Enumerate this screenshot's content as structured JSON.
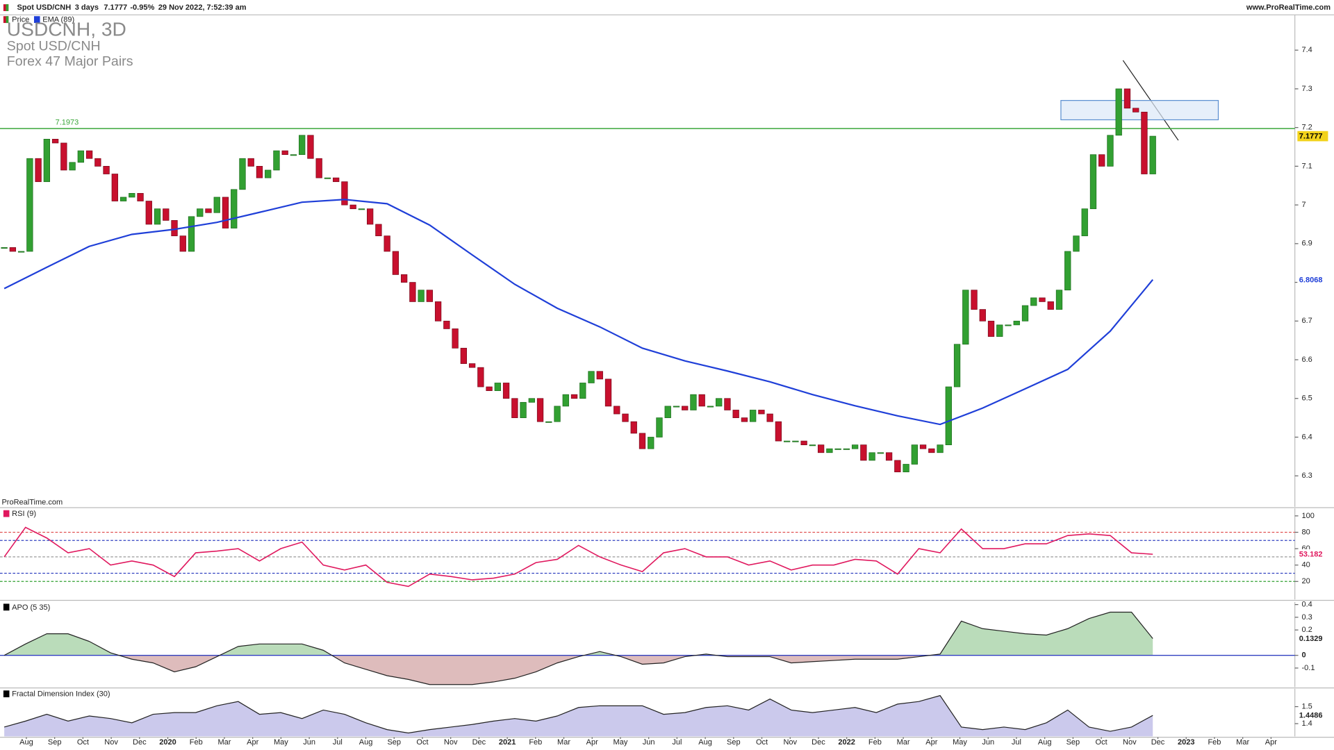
{
  "header": {
    "instrument": "Spot USD/CNH",
    "timeframe": "3 days",
    "last": "7.1777",
    "change": "-0.95%",
    "datetime": "29 Nov 2022, 7:52:39 am",
    "site": "www.ProRealTime.com",
    "watermark": "ProRealTime.com"
  },
  "chart_data": [
    {
      "type": "candlestick",
      "title": "USDCNH, 3D",
      "subtitle": "Spot USD/CNH",
      "market": "Forex 47 Major Pairs",
      "xtick_labels": [
        "Aug",
        "Sep",
        "Oct",
        "Nov",
        "Dec",
        "2020",
        "Feb",
        "Mar",
        "Apr",
        "May",
        "Jun",
        "Jul",
        "Aug",
        "Sep",
        "Oct",
        "Nov",
        "Dec",
        "2021",
        "Feb",
        "Mar",
        "Apr",
        "May",
        "Jun",
        "Jul",
        "Aug",
        "Sep",
        "Oct",
        "Nov",
        "Dec",
        "2022",
        "Feb",
        "Mar",
        "Apr",
        "May",
        "Jun",
        "Jul",
        "Aug",
        "Sep",
        "Oct",
        "Nov",
        "Dec",
        "2023",
        "Feb",
        "Mar",
        "Apr"
      ],
      "series": [
        {
          "name": "Price",
          "up_color": "#32a032",
          "down_color": "#c8102e",
          "values": [
            6.89,
            6.88,
            6.88,
            7.12,
            7.06,
            7.17,
            7.16,
            7.09,
            7.11,
            7.14,
            7.12,
            7.1,
            7.08,
            7.01,
            7.02,
            7.03,
            7.01,
            6.95,
            6.99,
            6.96,
            6.92,
            6.88,
            6.97,
            6.99,
            6.98,
            7.02,
            6.94,
            7.04,
            7.12,
            7.1,
            7.07,
            7.09,
            7.14,
            7.13,
            7.13,
            7.18,
            7.12,
            7.07,
            7.07,
            7.06,
            7.0,
            6.99,
            6.99,
            6.95,
            6.92,
            6.88,
            6.82,
            6.8,
            6.75,
            6.78,
            6.75,
            6.7,
            6.68,
            6.63,
            6.59,
            6.58,
            6.53,
            6.52,
            6.54,
            6.5,
            6.45,
            6.49,
            6.5,
            6.44,
            6.44,
            6.48,
            6.51,
            6.5,
            6.54,
            6.57,
            6.55,
            6.48,
            6.46,
            6.44,
            6.41,
            6.37,
            6.4,
            6.45,
            6.48,
            6.48,
            6.47,
            6.51,
            6.48,
            6.48,
            6.5,
            6.47,
            6.45,
            6.44,
            6.47,
            6.46,
            6.44,
            6.39,
            6.39,
            6.39,
            6.38,
            6.38,
            6.36,
            6.37,
            6.37,
            6.37,
            6.38,
            6.34,
            6.36,
            6.36,
            6.34,
            6.31,
            6.33,
            6.38,
            6.37,
            6.36,
            6.38,
            6.53,
            6.64,
            6.78,
            6.73,
            6.7,
            6.66,
            6.69,
            6.69,
            6.7,
            6.74,
            6.76,
            6.75,
            6.73,
            6.78,
            6.88,
            6.92,
            6.99,
            7.13,
            7.1,
            7.18,
            7.3,
            7.25,
            7.24,
            7.08,
            7.1777
          ]
        },
        {
          "name": "EMA (89)",
          "color": "#1f3fd8",
          "values": [
            6.784,
            6.839,
            6.893,
            6.924,
            6.937,
            6.955,
            6.981,
            7.007,
            7.014,
            7.003,
            6.948,
            6.871,
            6.795,
            6.733,
            6.685,
            6.63,
            6.597,
            6.571,
            6.543,
            6.51,
            6.481,
            6.455,
            6.433,
            6.475,
            6.525,
            6.575,
            6.674,
            6.8068
          ]
        }
      ],
      "ylim": [
        6.22,
        7.49
      ],
      "yticks": [
        6.3,
        6.4,
        6.5,
        6.6,
        6.7,
        6.8,
        6.9,
        7,
        7.1,
        7.2,
        7.3,
        7.4
      ],
      "resistance": {
        "value": 7.1973,
        "label": "7.1973",
        "color": "#3aa63a"
      },
      "zone": [
        7.22,
        7.27
      ]
    },
    {
      "type": "line",
      "title": "RSI (9)",
      "color": "#e0185e",
      "values": [
        50,
        86,
        73,
        55,
        60,
        40,
        45,
        40,
        26,
        55,
        57,
        60,
        45,
        60,
        68,
        40,
        34,
        40,
        19,
        14,
        29,
        26,
        22,
        24,
        29,
        43,
        47,
        64,
        50,
        40,
        32,
        55,
        60,
        50,
        50,
        40,
        45,
        34,
        40,
        40,
        47,
        45,
        29,
        60,
        55,
        84,
        60,
        60,
        66,
        66,
        76,
        78,
        76,
        55,
        53.182
      ],
      "ylim": [
        -2,
        109
      ],
      "yticks": [
        100,
        80,
        60,
        40,
        20
      ],
      "levels": [
        80,
        70,
        50,
        30,
        20
      ],
      "level_colors": [
        "#e05050",
        "#3040c0",
        "#999999",
        "#3040c0",
        "#30a030"
      ]
    },
    {
      "type": "area",
      "title": "APO (5 35)",
      "color": "#222222",
      "pos_color": "#3a9a3a",
      "neg_color": "#a04040",
      "values": [
        0,
        0.09,
        0.17,
        0.17,
        0.11,
        0.02,
        -0.03,
        -0.06,
        -0.13,
        -0.09,
        -0.01,
        0.07,
        0.09,
        0.09,
        0.09,
        0.04,
        -0.06,
        -0.11,
        -0.16,
        -0.19,
        -0.23,
        -0.23,
        -0.23,
        -0.21,
        -0.18,
        -0.13,
        -0.06,
        -0.01,
        0.03,
        -0.01,
        -0.07,
        -0.06,
        -0.01,
        0.01,
        -0.01,
        -0.01,
        -0.01,
        -0.06,
        -0.05,
        -0.04,
        -0.03,
        -0.03,
        -0.03,
        -0.01,
        0.01,
        0.27,
        0.21,
        0.19,
        0.17,
        0.16,
        0.21,
        0.29,
        0.34,
        0.34,
        0.1329
      ],
      "ylim": [
        -0.25,
        0.42
      ],
      "yticks": [
        0.4,
        0.3,
        0.2,
        0,
        -0.1
      ]
    },
    {
      "type": "area",
      "title": "Fractal Dimension Index (30)",
      "color": "#222222",
      "fill": "#6a64c8",
      "values": [
        1.38,
        1.415,
        1.455,
        1.415,
        1.445,
        1.43,
        1.405,
        1.455,
        1.465,
        1.465,
        1.505,
        1.53,
        1.455,
        1.465,
        1.43,
        1.48,
        1.455,
        1.405,
        1.365,
        1.345,
        1.365,
        1.38,
        1.395,
        1.415,
        1.43,
        1.415,
        1.445,
        1.495,
        1.505,
        1.505,
        1.505,
        1.455,
        1.465,
        1.495,
        1.505,
        1.48,
        1.545,
        1.48,
        1.465,
        1.48,
        1.495,
        1.465,
        1.515,
        1.53,
        1.565,
        1.38,
        1.365,
        1.38,
        1.365,
        1.405,
        1.48,
        1.38,
        1.355,
        1.38,
        1.4486
      ],
      "ylim": [
        1.325,
        1.605
      ],
      "yticks": [
        1.5,
        1.4
      ]
    }
  ]
}
